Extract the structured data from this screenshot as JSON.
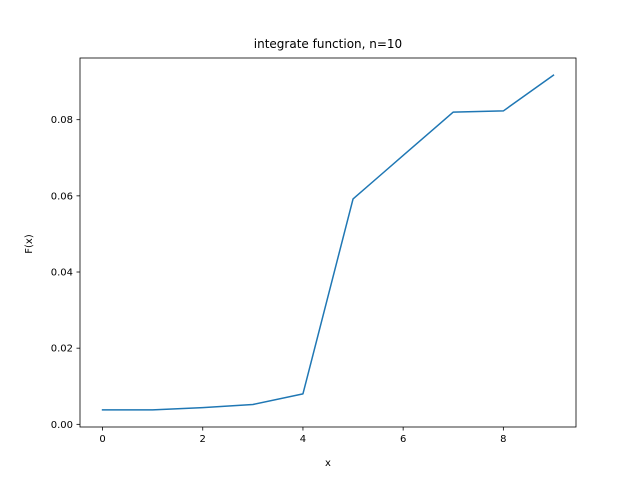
{
  "chart_data": {
    "type": "line",
    "title": "integrate function, n=10",
    "xlabel": "x",
    "ylabel": "F(x)",
    "xlim": [
      -0.45,
      9.45
    ],
    "ylim": [
      -0.0007,
      0.0962
    ],
    "xticks": [
      0,
      2,
      4,
      6,
      8
    ],
    "xtick_labels": [
      "0",
      "2",
      "4",
      "6",
      "8"
    ],
    "yticks": [
      0.0,
      0.02,
      0.04,
      0.06,
      0.08
    ],
    "ytick_labels": [
      "0.00",
      "0.02",
      "0.04",
      "0.06",
      "0.08"
    ],
    "grid": false,
    "series": [
      {
        "color": "#1f77b4",
        "x": [
          0,
          1,
          2,
          3,
          4,
          5,
          6,
          7,
          8,
          9
        ],
        "y": [
          0.0038,
          0.0038,
          0.0044,
          0.0052,
          0.008,
          0.0592,
          0.0706,
          0.082,
          0.0823,
          0.0917
        ]
      }
    ]
  }
}
